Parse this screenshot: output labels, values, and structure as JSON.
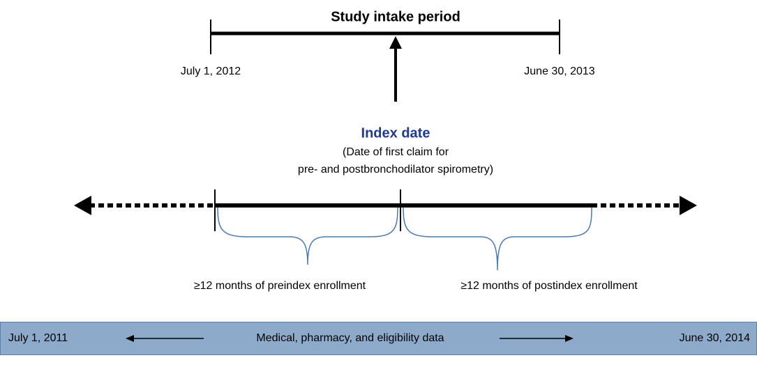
{
  "intake": {
    "title": "Study intake period",
    "start": "July 1, 2012",
    "end": "June 30, 2013"
  },
  "index": {
    "title": "Index date",
    "note": [
      "(Date of first claim for",
      "pre- and postbronchodilator spirometry)"
    ]
  },
  "periods": {
    "pre": "≥12 months of preindex enrollment",
    "post": "≥12 months of postindex enrollment"
  },
  "data_bar": {
    "start": "July 1, 2011",
    "label": "Medical, pharmacy, and eligibility data",
    "end": "June 30, 2014"
  }
}
